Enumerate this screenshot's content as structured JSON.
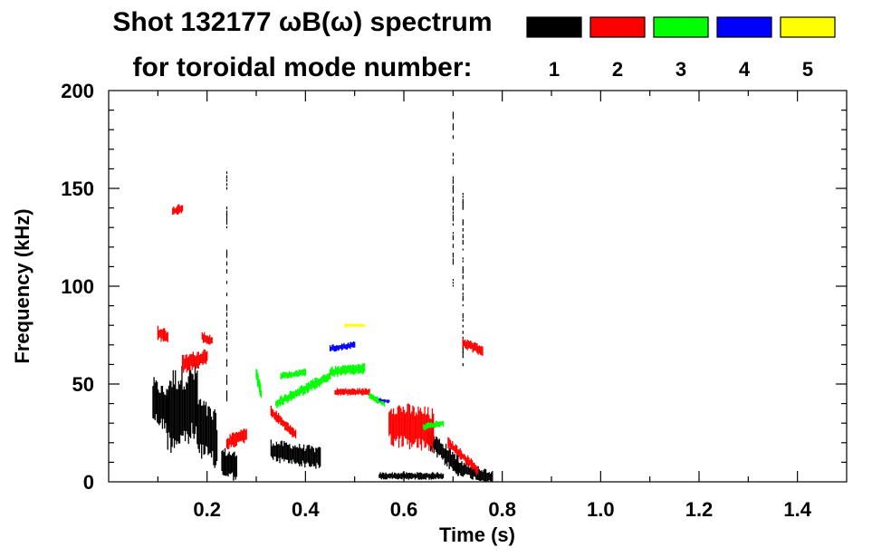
{
  "chart_data": {
    "type": "heatmap",
    "title_line1": "Shot 132177 ωB(ω) spectrum",
    "title_line2": "for toroidal mode number:",
    "xlabel": "Time (s)",
    "ylabel": "Frequency (kHz)",
    "xlim": [
      0.0,
      1.5
    ],
    "ylim": [
      0,
      200
    ],
    "x_ticks": [
      "0.2",
      "0.4",
      "0.6",
      "0.8",
      "1.0",
      "1.2",
      "1.4"
    ],
    "x_tick_values": [
      0.2,
      0.4,
      0.6,
      0.8,
      1.0,
      1.2,
      1.4
    ],
    "y_ticks": [
      "0",
      "50",
      "100",
      "150",
      "200"
    ],
    "y_tick_values": [
      0,
      50,
      100,
      150,
      200
    ],
    "legend": [
      {
        "mode": "1",
        "color": "#000000"
      },
      {
        "mode": "2",
        "color": "#ff0000"
      },
      {
        "mode": "3",
        "color": "#00ff00"
      },
      {
        "mode": "4",
        "color": "#0000ff"
      },
      {
        "mode": "5",
        "color": "#ffff00"
      }
    ],
    "series": [
      {
        "mode": "1",
        "color": "#000000",
        "segments": [
          {
            "t": [
              0.09,
              0.12
            ],
            "f": [
              42,
              36
            ],
            "spread": 12
          },
          {
            "t": [
              0.12,
              0.18
            ],
            "f": [
              36,
              40
            ],
            "spread": 22
          },
          {
            "t": [
              0.18,
              0.22
            ],
            "f": [
              30,
              20
            ],
            "spread": 16
          },
          {
            "t": [
              0.23,
              0.26
            ],
            "f": [
              10,
              8
            ],
            "spread": 8
          },
          {
            "t": [
              0.33,
              0.43
            ],
            "f": [
              16,
              12
            ],
            "spread": 6
          },
          {
            "t": [
              0.55,
              0.68
            ],
            "f": [
              3,
              3
            ],
            "spread": 2
          },
          {
            "t": [
              0.65,
              0.71
            ],
            "f": [
              22,
              8
            ],
            "spread": 6
          },
          {
            "t": [
              0.7,
              0.78
            ],
            "f": [
              8,
              2
            ],
            "spread": 4
          },
          {
            "t": [
              0.7,
              0.7
            ],
            "f": [
              100,
              190
            ],
            "spread": 1
          },
          {
            "t": [
              0.24,
              0.24
            ],
            "f": [
              40,
              160
            ],
            "spread": 1
          },
          {
            "t": [
              0.72,
              0.72
            ],
            "f": [
              60,
              150
            ],
            "spread": 1
          }
        ]
      },
      {
        "mode": "2",
        "color": "#ff0000",
        "segments": [
          {
            "t": [
              0.13,
              0.15
            ],
            "f": [
              138,
              140
            ],
            "spread": 3
          },
          {
            "t": [
              0.1,
              0.12
            ],
            "f": [
              76,
              74
            ],
            "spread": 4
          },
          {
            "t": [
              0.19,
              0.21
            ],
            "f": [
              74,
              72
            ],
            "spread": 3
          },
          {
            "t": [
              0.15,
              0.2
            ],
            "f": [
              60,
              64
            ],
            "spread": 5
          },
          {
            "t": [
              0.24,
              0.28
            ],
            "f": [
              20,
              24
            ],
            "spread": 4
          },
          {
            "t": [
              0.33,
              0.38
            ],
            "f": [
              36,
              24
            ],
            "spread": 3
          },
          {
            "t": [
              0.46,
              0.53
            ],
            "f": [
              46,
              46
            ],
            "spread": 2
          },
          {
            "t": [
              0.57,
              0.66
            ],
            "f": [
              30,
              26
            ],
            "spread": 12
          },
          {
            "t": [
              0.69,
              0.75
            ],
            "f": [
              20,
              6
            ],
            "spread": 3
          },
          {
            "t": [
              0.72,
              0.76
            ],
            "f": [
              71,
              67
            ],
            "spread": 3
          }
        ]
      },
      {
        "mode": "3",
        "color": "#00ff00",
        "segments": [
          {
            "t": [
              0.3,
              0.31
            ],
            "f": [
              55,
              45
            ],
            "spread": 4
          },
          {
            "t": [
              0.34,
              0.45
            ],
            "f": [
              40,
              54
            ],
            "spread": 3
          },
          {
            "t": [
              0.45,
              0.52
            ],
            "f": [
              56,
              58
            ],
            "spread": 3
          },
          {
            "t": [
              0.35,
              0.4
            ],
            "f": [
              54,
              56
            ],
            "spread": 2
          },
          {
            "t": [
              0.53,
              0.56
            ],
            "f": [
              44,
              40
            ],
            "spread": 2
          },
          {
            "t": [
              0.64,
              0.68
            ],
            "f": [
              28,
              30
            ],
            "spread": 2
          }
        ]
      },
      {
        "mode": "4",
        "color": "#0000ff",
        "segments": [
          {
            "t": [
              0.45,
              0.5
            ],
            "f": [
              68,
              70
            ],
            "spread": 2
          },
          {
            "t": [
              0.55,
              0.57
            ],
            "f": [
              42,
              41
            ],
            "spread": 1
          }
        ]
      },
      {
        "mode": "5",
        "color": "#ffff00",
        "segments": [
          {
            "t": [
              0.48,
              0.52
            ],
            "f": [
              80,
              80
            ],
            "spread": 1
          }
        ]
      }
    ]
  }
}
